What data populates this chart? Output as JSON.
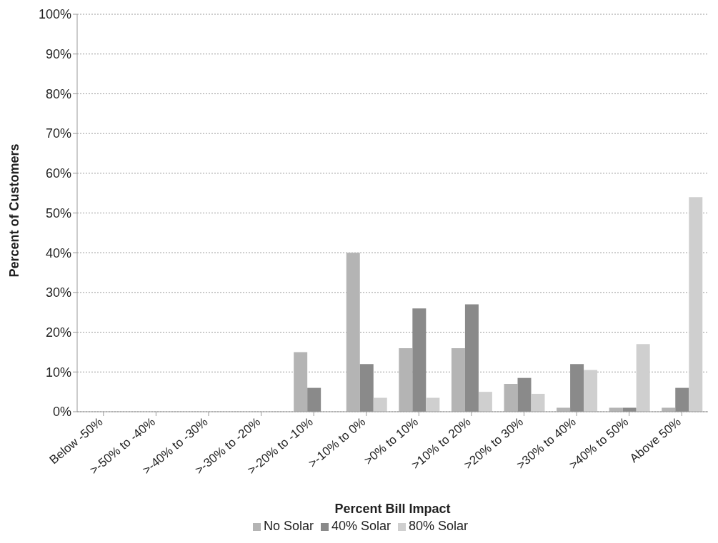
{
  "chart_data": {
    "type": "bar",
    "xlabel": "Percent Bill Impact",
    "ylabel": "Percent of Customers",
    "categories": [
      "Below -50%",
      ">-50% to -40%",
      ">-40% to -30%",
      ">-30% to -20%",
      ">-20% to -10%",
      ">-10% to 0%",
      ">0% to 10%",
      ">10% to 20%",
      ">20% to 30%",
      ">30% to 40%",
      ">40% to 50%",
      "Above 50%"
    ],
    "series": [
      {
        "name": "No Solar",
        "color": "#b4b4b4",
        "values": [
          0,
          0,
          0,
          0,
          15,
          40,
          16,
          16,
          7,
          1,
          1,
          1
        ]
      },
      {
        "name": "40% Solar",
        "color": "#8a8a8a",
        "values": [
          0,
          0,
          0,
          0,
          6,
          12,
          26,
          27,
          8.5,
          12,
          1,
          6
        ]
      },
      {
        "name": "80% Solar",
        "color": "#cfcfcf",
        "values": [
          0,
          0,
          0,
          0,
          null,
          3.5,
          3.5,
          5,
          4.5,
          10.5,
          17,
          54
        ]
      }
    ],
    "ylim": [
      0,
      100
    ],
    "yticks": [
      {
        "value": 0,
        "label": "0%"
      },
      {
        "value": 10,
        "label": "10%"
      },
      {
        "value": 20,
        "label": "20%"
      },
      {
        "value": 30,
        "label": "30%"
      },
      {
        "value": 40,
        "label": "40%"
      },
      {
        "value": 50,
        "label": "50%"
      },
      {
        "value": 60,
        "label": "60%"
      },
      {
        "value": 70,
        "label": "70%"
      },
      {
        "value": 80,
        "label": "80%"
      },
      {
        "value": 90,
        "label": "90%"
      },
      {
        "value": 100,
        "label": "100%"
      }
    ],
    "grid": "y",
    "legend": "bottom"
  }
}
